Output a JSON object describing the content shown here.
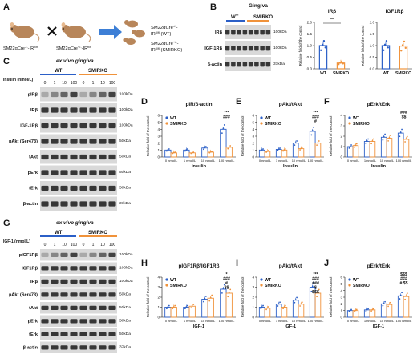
{
  "colors": {
    "wt": "#2b5fc7",
    "smirko": "#f0923a",
    "blot_bg": "#d9d9d9",
    "band": "#1a1a1a"
  },
  "panels": {
    "A": {
      "letter": "A",
      "mouse1": "SM22αCre",
      "mouse1_sup": "-/-",
      "mouse1_tail": "-IR",
      "mouse1_sup2": "fl/fl",
      "mouse2": "SM22αCre",
      "mouse2_sup": "+/-",
      "mouse2_tail": "-IR",
      "mouse2_sup2": "fl/fl",
      "out1": "SM22αCre",
      "out1_sup": "-/-",
      "out1_tail": "-",
      "out1_b": "IR",
      "out1_sup2": "fl/fl",
      "out1_tag": " (WT)",
      "out2": "SM22αCre",
      "out2_sup": "+/-",
      "out2_tail": "-",
      "out2_b": "IR",
      "out2_sup2": "fl/fl",
      "out2_tag": " (SMIRKO)"
    },
    "B": {
      "letter": "B",
      "title": "Gingiva",
      "groups": [
        "WT",
        "SMIRKO"
      ],
      "rows": [
        "IRβ",
        "IGF-1Rβ",
        "β-actin"
      ],
      "markers": [
        "100kDa",
        "100kDa",
        "37kDa"
      ]
    },
    "C": {
      "letter": "C",
      "title": "ex vivo gingiva",
      "groups": [
        "WT",
        "SMIRKO"
      ],
      "dose_label": "Insulin (nmol/L)",
      "doses": [
        "0",
        "1",
        "10",
        "100",
        "0",
        "1",
        "10",
        "100"
      ],
      "rows": [
        "pIRβ",
        "IRβ",
        "IGF-1Rβ",
        "pAkt (Ser473)",
        "tAkt",
        "pErk",
        "tErk",
        "β-actin"
      ],
      "markers": [
        "100kDa",
        "100kDa",
        "100kDa",
        "50kDa",
        "50kDa",
        "50kDa",
        "50kDa",
        "37kDa"
      ]
    },
    "G": {
      "letter": "G",
      "title": "ex vivo gingiva",
      "groups": [
        "WT",
        "SMIRKO"
      ],
      "dose_label": "IGF-1 (nmol/L)",
      "doses": [
        "0",
        "1",
        "10",
        "100",
        "0",
        "1",
        "10",
        "100"
      ],
      "rows": [
        "pIGF1Rβ",
        "IGF1Rβ",
        "IRβ",
        "pAkt (Ser473)",
        "tAkt",
        "pErk",
        "tErk",
        "β-actin"
      ],
      "markers": [
        "100kDa",
        "100kDa",
        "100kDa",
        "50kDa",
        "50kDa",
        "50kDa",
        "50kDa",
        "37kDa"
      ]
    }
  },
  "chart_data": [
    {
      "panel": "B",
      "type": "bar",
      "title": "IRβ",
      "ylabel": "Relative fold of the control",
      "categories": [
        "WT",
        "SMIRKO"
      ],
      "values": [
        1.0,
        0.25
      ],
      "ylim": [
        0,
        2.0
      ],
      "yticks": [
        "0.0",
        "0.5",
        "1.0",
        "1.5",
        "2.0"
      ],
      "annotations": [
        "**"
      ]
    },
    {
      "panel": "B",
      "type": "bar",
      "title": "IGF1Rβ",
      "ylabel": "Relative fold of the control",
      "categories": [
        "WT",
        "SMIRKO"
      ],
      "values": [
        1.0,
        0.98
      ],
      "ylim": [
        0,
        2.0
      ],
      "yticks": [
        "0.0",
        "0.5",
        "1.0",
        "1.5",
        "2.0"
      ],
      "annotations": []
    },
    {
      "panel": "D",
      "letter": "D",
      "type": "bar",
      "title": "pIR/β-actin",
      "ylabel": "Relative fold of the control",
      "xlabel": "Insulin",
      "categories": [
        "0 nmol/L",
        "1 nmol/L",
        "10 nmol/L",
        "100 nmol/L"
      ],
      "ylim": [
        0,
        6
      ],
      "yticks": [
        "0",
        "1",
        "2",
        "3",
        "4",
        "5",
        "6"
      ],
      "series": [
        {
          "name": "WT",
          "values": [
            1.0,
            1.0,
            1.3,
            4.0
          ]
        },
        {
          "name": "SMIRKO",
          "values": [
            0.6,
            0.6,
            0.7,
            1.4
          ]
        }
      ],
      "annotations": [
        "***",
        "###"
      ]
    },
    {
      "panel": "E",
      "letter": "E",
      "type": "bar",
      "title": "pAkt/tAkt",
      "ylabel": "Relative fold of the control",
      "xlabel": "Insulin",
      "categories": [
        "0 nmol/L",
        "1 nmol/L",
        "10 nmol/L",
        "100 nmol/L"
      ],
      "ylim": [
        0,
        6
      ],
      "yticks": [
        "0",
        "1",
        "2",
        "3",
        "4",
        "5",
        "6"
      ],
      "series": [
        {
          "name": "WT",
          "values": [
            1.0,
            1.1,
            2.0,
            3.7
          ]
        },
        {
          "name": "SMIRKO",
          "values": [
            0.8,
            1.0,
            1.2,
            2.0
          ]
        }
      ],
      "annotations": [
        "***",
        "###",
        "#"
      ]
    },
    {
      "panel": "F",
      "letter": "F",
      "type": "bar",
      "title": "pErk/tErk",
      "ylabel": "Relative fold of the control",
      "xlabel": "Insulin",
      "categories": [
        "0 nmol/L",
        "1 nmol/L",
        "10 nmol/L",
        "100 nmol/L"
      ],
      "ylim": [
        0,
        4
      ],
      "yticks": [
        "0",
        "1",
        "2",
        "3",
        "4"
      ],
      "series": [
        {
          "name": "WT",
          "values": [
            1.0,
            1.5,
            1.9,
            2.3
          ]
        },
        {
          "name": "SMIRKO",
          "values": [
            1.1,
            1.5,
            1.8,
            1.7
          ]
        }
      ],
      "annotations": [
        "###",
        "$$"
      ]
    },
    {
      "panel": "H",
      "letter": "H",
      "type": "bar",
      "title": "pIGF1Rβ/IGF1Rβ",
      "ylabel": "Relative fold of the control",
      "xlabel": "IGF-1",
      "categories": [
        "0 nmol/L",
        "1 nmol/L",
        "10 nmol/L",
        "100 nmol/L"
      ],
      "ylim": [
        0,
        4
      ],
      "yticks": [
        "0",
        "1",
        "2",
        "3",
        "4"
      ],
      "series": [
        {
          "name": "WT",
          "values": [
            1.0,
            1.0,
            1.8,
            2.8
          ]
        },
        {
          "name": "SMIRKO",
          "values": [
            1.0,
            1.1,
            1.9,
            2.4
          ]
        }
      ],
      "annotations": [
        "*",
        "###",
        "#",
        "$$"
      ]
    },
    {
      "panel": "I",
      "letter": "I",
      "type": "bar",
      "title": "pAkt/tAkt",
      "ylabel": "Relative fold of the control",
      "xlabel": "IGF-1",
      "categories": [
        "0 nmol/L",
        "1 nmol/L",
        "10 nmol/L",
        "100 nmol/L"
      ],
      "ylim": [
        0,
        4
      ],
      "yticks": [
        "0",
        "1",
        "2",
        "3",
        "4"
      ],
      "series": [
        {
          "name": "WT",
          "values": [
            1.0,
            1.3,
            1.7,
            3.0
          ]
        },
        {
          "name": "SMIRKO",
          "values": [
            0.9,
            1.0,
            1.3,
            2.4
          ]
        }
      ],
      "annotations": [
        "***",
        "###",
        "###",
        "$",
        "$$$"
      ]
    },
    {
      "panel": "J",
      "letter": "J",
      "type": "bar",
      "title": "pErk/tErk",
      "ylabel": "Relative fold of the control",
      "xlabel": "IGF-1",
      "categories": [
        "0 nmol/L",
        "1 nmol/L",
        "10 nmol/L",
        "100 nmol/L"
      ],
      "ylim": [
        0,
        6
      ],
      "yticks": [
        "0",
        "1",
        "2",
        "3",
        "4",
        "5",
        "6"
      ],
      "series": [
        {
          "name": "WT",
          "values": [
            1.0,
            1.1,
            2.0,
            3.2
          ]
        },
        {
          "name": "SMIRKO",
          "values": [
            1.0,
            1.1,
            1.9,
            3.1
          ]
        }
      ],
      "annotations": [
        "$$$",
        "###",
        "# $$"
      ]
    }
  ]
}
